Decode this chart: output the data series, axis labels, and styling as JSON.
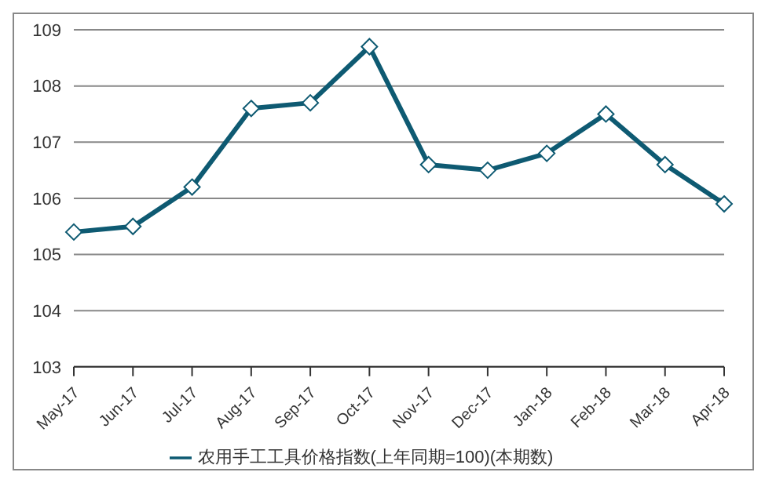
{
  "chart_data": {
    "type": "line",
    "categories": [
      "May-17",
      "Jun-17",
      "Jul-17",
      "Aug-17",
      "Sep-17",
      "Oct-17",
      "Nov-17",
      "Dec-17",
      "Jan-18",
      "Feb-18",
      "Mar-18",
      "Apr-18"
    ],
    "series": [
      {
        "name": "农用手工工具价格指数(上年同期=100)(本期数)",
        "color": "#0e5a72",
        "values": [
          105.4,
          105.5,
          106.2,
          107.6,
          107.7,
          108.7,
          106.6,
          106.5,
          106.8,
          107.5,
          106.6,
          105.9
        ]
      }
    ],
    "ylim": [
      103,
      109
    ],
    "yticks": [
      103,
      104,
      105,
      106,
      107,
      108,
      109
    ],
    "grid": "y",
    "legend": "bottom",
    "marker": "diamond"
  }
}
